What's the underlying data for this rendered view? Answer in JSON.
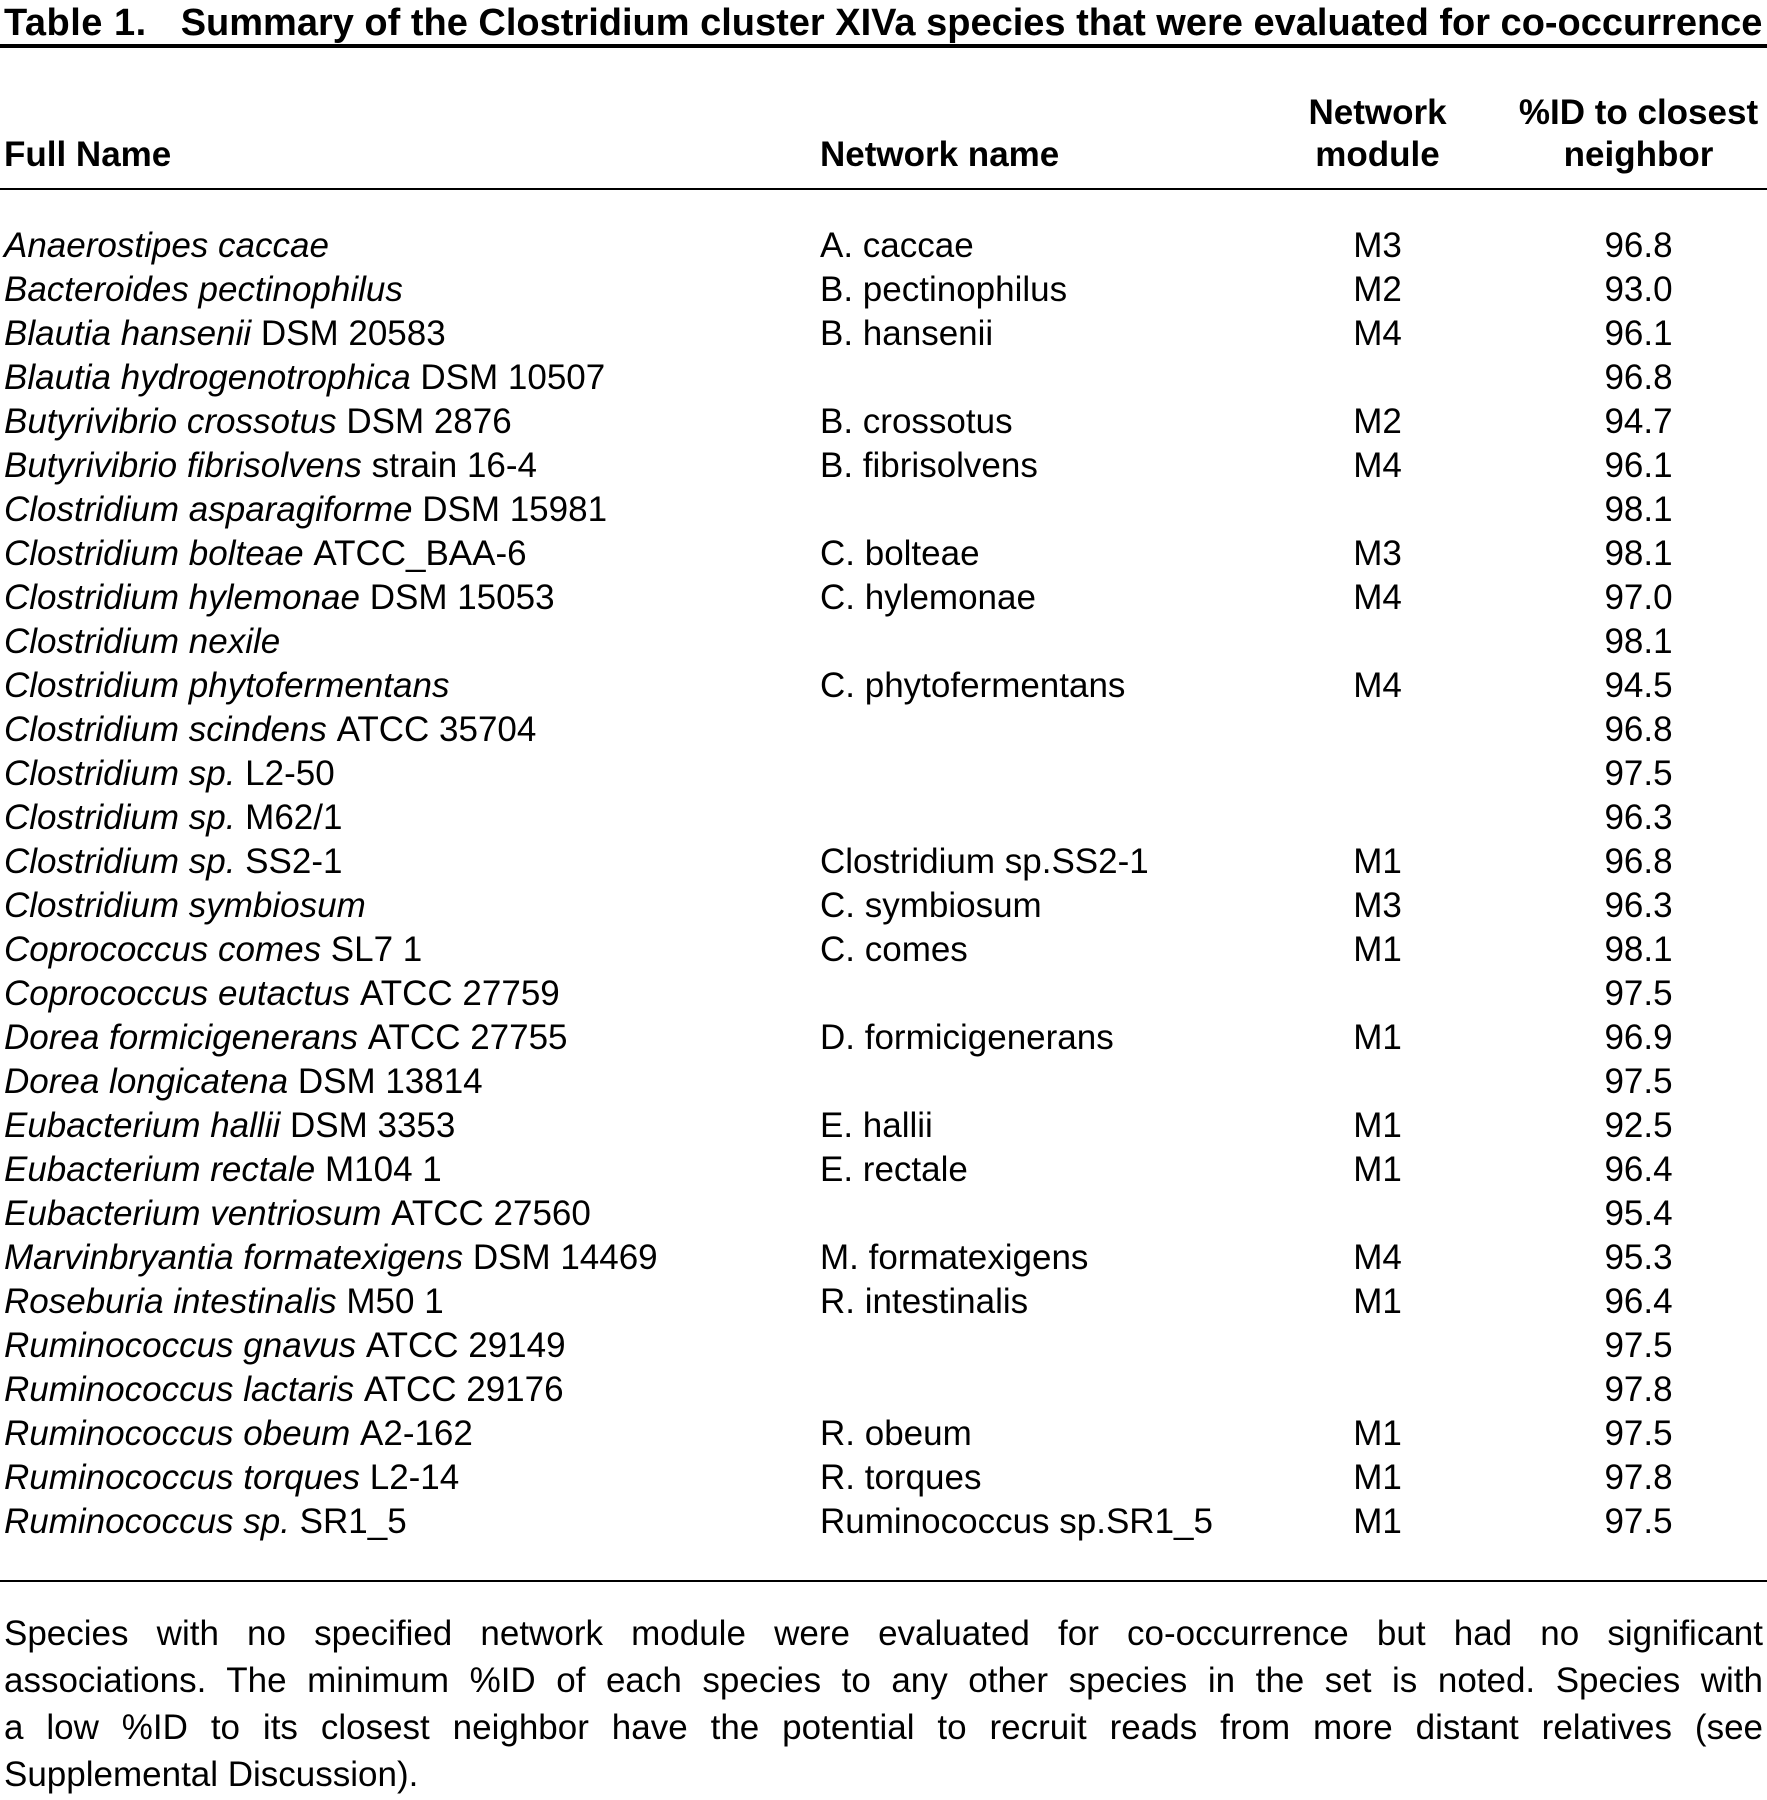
{
  "title": {
    "label": "Table 1.",
    "text": "Summary of the Clostridium cluster XIVa species that were evaluated for co-occurrence"
  },
  "columns": {
    "full_name": "Full Name",
    "network_name": "Network name",
    "network_module": [
      "Network",
      "module"
    ],
    "pct_id": [
      "%ID to closest",
      "neighbor"
    ]
  },
  "table": {
    "rows": [
      {
        "full_italic": "Anaerostipes caccae",
        "full_regular": "",
        "network_name": "A. caccae",
        "module": "M3",
        "pct_id": "96.8"
      },
      {
        "full_italic": "Bacteroides pectinophilus",
        "full_regular": "",
        "network_name": "B. pectinophilus",
        "module": "M2",
        "pct_id": "93.0"
      },
      {
        "full_italic": "Blautia hansenii",
        "full_regular": "DSM 20583",
        "network_name": "B. hansenii",
        "module": "M4",
        "pct_id": "96.1"
      },
      {
        "full_italic": "Blautia hydrogenotrophica",
        "full_regular": "DSM 10507",
        "network_name": "",
        "module": "",
        "pct_id": "96.8"
      },
      {
        "full_italic": "Butyrivibrio crossotus",
        "full_regular": "DSM 2876",
        "network_name": "B. crossotus",
        "module": "M2",
        "pct_id": "94.7"
      },
      {
        "full_italic": "Butyrivibrio fibrisolvens",
        "full_regular": "strain 16-4",
        "network_name": "B. fibrisolvens",
        "module": "M4",
        "pct_id": "96.1"
      },
      {
        "full_italic": "Clostridium asparagiforme",
        "full_regular": "DSM 15981",
        "network_name": "",
        "module": "",
        "pct_id": "98.1"
      },
      {
        "full_italic": "Clostridium bolteae",
        "full_regular": "ATCC_BAA-6",
        "network_name": "C. bolteae",
        "module": "M3",
        "pct_id": "98.1"
      },
      {
        "full_italic": "Clostridium hylemonae",
        "full_regular": "DSM 15053",
        "network_name": "C. hylemonae",
        "module": "M4",
        "pct_id": "97.0"
      },
      {
        "full_italic": "Clostridium nexile",
        "full_regular": "",
        "network_name": "",
        "module": "",
        "pct_id": "98.1"
      },
      {
        "full_italic": "Clostridium phytofermentans",
        "full_regular": "",
        "network_name": "C. phytofermentans",
        "module": "M4",
        "pct_id": "94.5"
      },
      {
        "full_italic": "Clostridium scindens",
        "full_regular": "ATCC 35704",
        "network_name": "",
        "module": "",
        "pct_id": "96.8"
      },
      {
        "full_italic": "Clostridium sp.",
        "full_regular": "L2-50",
        "network_name": "",
        "module": "",
        "pct_id": "97.5"
      },
      {
        "full_italic": "Clostridium sp.",
        "full_regular": "M62/1",
        "network_name": "",
        "module": "",
        "pct_id": "96.3"
      },
      {
        "full_italic": "Clostridium sp.",
        "full_regular": "SS2-1",
        "network_name": "Clostridium sp.SS2-1",
        "module": "M1",
        "pct_id": "96.8"
      },
      {
        "full_italic": "Clostridium symbiosum",
        "full_regular": "",
        "network_name": "C. symbiosum",
        "module": "M3",
        "pct_id": "96.3"
      },
      {
        "full_italic": "Coprococcus comes",
        "full_regular": "SL7 1",
        "network_name": "C. comes",
        "module": "M1",
        "pct_id": "98.1"
      },
      {
        "full_italic": "Coprococcus eutactus",
        "full_regular": "ATCC 27759",
        "network_name": "",
        "module": "",
        "pct_id": "97.5"
      },
      {
        "full_italic": "Dorea formicigenerans",
        "full_regular": "ATCC 27755",
        "network_name": "D. formicigenerans",
        "module": "M1",
        "pct_id": "96.9"
      },
      {
        "full_italic": "Dorea longicatena",
        "full_regular": "DSM 13814",
        "network_name": "",
        "module": "",
        "pct_id": "97.5"
      },
      {
        "full_italic": "Eubacterium hallii",
        "full_regular": "DSM 3353",
        "network_name": "E. hallii",
        "module": "M1",
        "pct_id": "92.5"
      },
      {
        "full_italic": "Eubacterium rectale",
        "full_regular": "M104 1",
        "network_name": "E. rectale",
        "module": "M1",
        "pct_id": "96.4"
      },
      {
        "full_italic": "Eubacterium ventriosum",
        "full_regular": "ATCC 27560",
        "network_name": "",
        "module": "",
        "pct_id": "95.4"
      },
      {
        "full_italic": "Marvinbryantia formatexigens",
        "full_regular": "DSM 14469",
        "network_name": "M. formatexigens",
        "module": "M4",
        "pct_id": "95.3"
      },
      {
        "full_italic": "Roseburia intestinalis",
        "full_regular": "M50 1",
        "network_name": "R. intestinalis",
        "module": "M1",
        "pct_id": "96.4"
      },
      {
        "full_italic": "Ruminococcus gnavus",
        "full_regular": "ATCC 29149",
        "network_name": "",
        "module": "",
        "pct_id": "97.5"
      },
      {
        "full_italic": "Ruminococcus lactaris",
        "full_regular": "ATCC 29176",
        "network_name": "",
        "module": "",
        "pct_id": "97.8"
      },
      {
        "full_italic": "Ruminococcus obeum",
        "full_regular": "A2-162",
        "network_name": "R. obeum",
        "module": "M1",
        "pct_id": "97.5"
      },
      {
        "full_italic": "Ruminococcus torques",
        "full_regular": "L2-14",
        "network_name": "R. torques",
        "module": "M1",
        "pct_id": "97.8"
      },
      {
        "full_italic": "Ruminococcus sp.",
        "full_regular": "SR1_5",
        "network_name": "Ruminococcus sp.SR1_5",
        "module": "M1",
        "pct_id": "97.5"
      }
    ]
  },
  "footnote": {
    "lines": [
      "Species with no specified network module were evaluated for co-occurrence but had no significant",
      "associations. The minimum %ID of each species to any other species in the set is noted. Species with",
      "a low %ID to its closest neighbor have the potential to recruit reads from more distant relatives (see",
      "Supplemental Discussion)."
    ]
  }
}
